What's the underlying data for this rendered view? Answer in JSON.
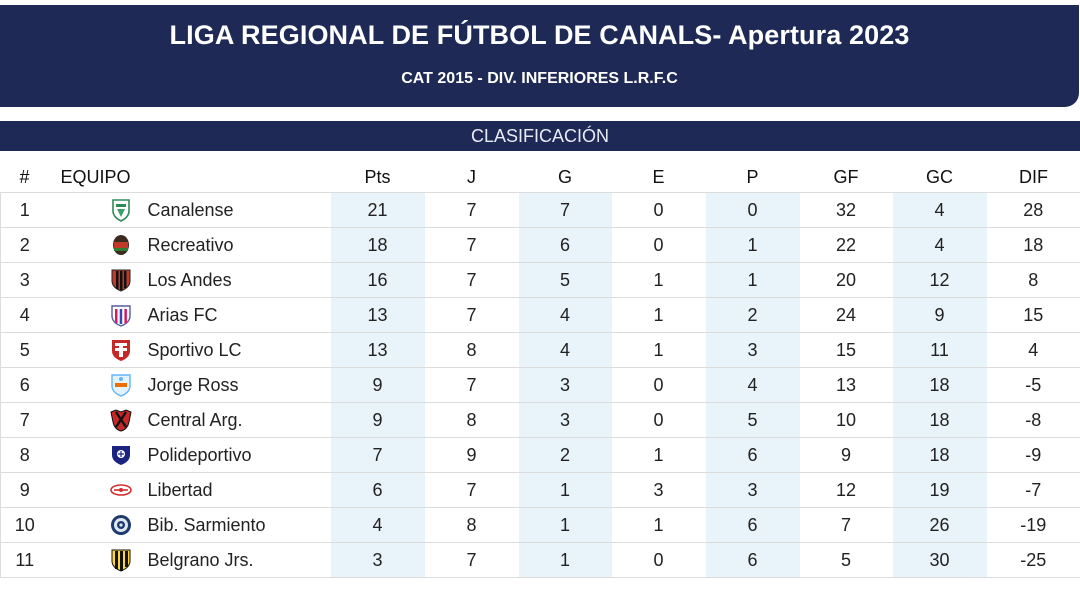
{
  "header": {
    "title": "LIGA REGIONAL DE FÚTBOL DE CANALS- Apertura 2023",
    "subtitle": "CAT 2015 - DIV. INFERIORES L.R.F.C"
  },
  "section_title": "CLASIFICACIÓN",
  "columns": {
    "pos": "#",
    "team": "EQUIPO",
    "pts": "Pts",
    "j": "J",
    "g": "G",
    "e": "E",
    "p": "P",
    "gf": "GF",
    "gc": "GC",
    "dif": "DIF"
  },
  "rows": [
    {
      "pos": "1",
      "team": "Canalense",
      "crest": "canalense-crest-icon",
      "pts": "21",
      "j": "7",
      "g": "7",
      "e": "0",
      "p": "0",
      "gf": "32",
      "gc": "4",
      "dif": "28"
    },
    {
      "pos": "2",
      "team": "Recreativo",
      "crest": "recreativo-crest-icon",
      "pts": "18",
      "j": "7",
      "g": "6",
      "e": "0",
      "p": "1",
      "gf": "22",
      "gc": "4",
      "dif": "18"
    },
    {
      "pos": "3",
      "team": "Los Andes",
      "crest": "los-andes-crest-icon",
      "pts": "16",
      "j": "7",
      "g": "5",
      "e": "1",
      "p": "1",
      "gf": "20",
      "gc": "12",
      "dif": "8"
    },
    {
      "pos": "4",
      "team": "Arias FC",
      "crest": "arias-fc-crest-icon",
      "pts": "13",
      "j": "7",
      "g": "4",
      "e": "1",
      "p": "2",
      "gf": "24",
      "gc": "9",
      "dif": "15"
    },
    {
      "pos": "5",
      "team": "Sportivo LC",
      "crest": "sportivo-lc-crest-icon",
      "pts": "13",
      "j": "8",
      "g": "4",
      "e": "1",
      "p": "3",
      "gf": "15",
      "gc": "11",
      "dif": "4"
    },
    {
      "pos": "6",
      "team": "Jorge Ross",
      "crest": "jorge-ross-crest-icon",
      "pts": "9",
      "j": "7",
      "g": "3",
      "e": "0",
      "p": "4",
      "gf": "13",
      "gc": "18",
      "dif": "-5"
    },
    {
      "pos": "7",
      "team": "Central Arg.",
      "crest": "central-arg-crest-icon",
      "pts": "9",
      "j": "8",
      "g": "3",
      "e": "0",
      "p": "5",
      "gf": "10",
      "gc": "18",
      "dif": "-8"
    },
    {
      "pos": "8",
      "team": "Polideportivo",
      "crest": "polideportivo-crest-icon",
      "pts": "7",
      "j": "9",
      "g": "2",
      "e": "1",
      "p": "6",
      "gf": "9",
      "gc": "18",
      "dif": "-9"
    },
    {
      "pos": "9",
      "team": "Libertad",
      "crest": "libertad-crest-icon",
      "pts": "6",
      "j": "7",
      "g": "1",
      "e": "3",
      "p": "3",
      "gf": "12",
      "gc": "19",
      "dif": "-7"
    },
    {
      "pos": "10",
      "team": "Bib. Sarmiento",
      "crest": "bib-sarmiento-crest-icon",
      "pts": "4",
      "j": "8",
      "g": "1",
      "e": "1",
      "p": "6",
      "gf": "7",
      "gc": "26",
      "dif": "-19"
    },
    {
      "pos": "11",
      "team": "Belgrano Jrs.",
      "crest": "belgrano-jrs-crest-icon",
      "pts": "3",
      "j": "7",
      "g": "1",
      "e": "0",
      "p": "6",
      "gf": "5",
      "gc": "30",
      "dif": "-25"
    }
  ],
  "colors": {
    "header_bg": "#1e2a55",
    "shaded_column_bg": "#e9f3fa",
    "header_text": "#ffffff"
  }
}
